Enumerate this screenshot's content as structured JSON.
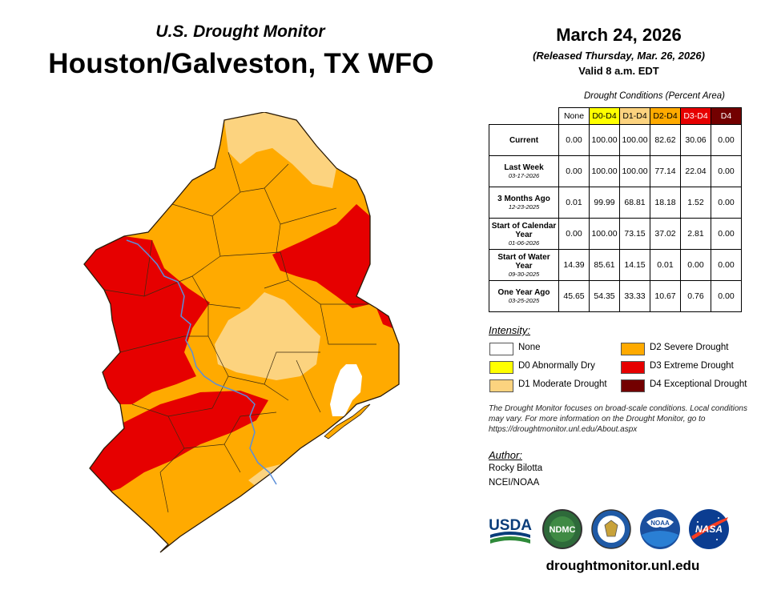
{
  "header": {
    "series": "U.S. Drought Monitor",
    "region": "Houston/Galveston, TX WFO",
    "date": "March 24, 2026",
    "released": "(Released Thursday, Mar. 26, 2026)",
    "valid": "Valid 8 a.m. EDT"
  },
  "table": {
    "caption": "Drought Conditions (Percent Area)",
    "columns": [
      "None",
      "D0-D4",
      "D1-D4",
      "D2-D4",
      "D3-D4",
      "D4"
    ],
    "column_colors": [
      "#ffffff",
      "#ffff00",
      "#fcd37f",
      "#ffaa00",
      "#e60000",
      "#730000"
    ],
    "rows": [
      {
        "label": "Current",
        "sublabel": "",
        "values": [
          "0.00",
          "100.00",
          "100.00",
          "82.62",
          "30.06",
          "0.00"
        ]
      },
      {
        "label": "Last Week",
        "sublabel": "03-17-2026",
        "values": [
          "0.00",
          "100.00",
          "100.00",
          "77.14",
          "22.04",
          "0.00"
        ]
      },
      {
        "label": "3 Months Ago",
        "sublabel": "12-23-2025",
        "values": [
          "0.01",
          "99.99",
          "68.81",
          "18.18",
          "1.52",
          "0.00"
        ]
      },
      {
        "label": "Start of Calendar Year",
        "sublabel": "01-06-2026",
        "values": [
          "0.00",
          "100.00",
          "73.15",
          "37.02",
          "2.81",
          "0.00"
        ]
      },
      {
        "label": "Start of Water Year",
        "sublabel": "09-30-2025",
        "values": [
          "14.39",
          "85.61",
          "14.15",
          "0.01",
          "0.00",
          "0.00"
        ]
      },
      {
        "label": "One Year Ago",
        "sublabel": "03-25-2025",
        "values": [
          "45.65",
          "54.35",
          "33.33",
          "10.67",
          "0.76",
          "0.00"
        ]
      }
    ]
  },
  "legend": {
    "title": "Intensity:",
    "items": [
      {
        "label": "None",
        "color": "#ffffff"
      },
      {
        "label": "D0 Abnormally Dry",
        "color": "#ffff00"
      },
      {
        "label": "D1 Moderate Drought",
        "color": "#fcd37f"
      },
      {
        "label": "D2 Severe Drought",
        "color": "#ffaa00"
      },
      {
        "label": "D3 Extreme Drought",
        "color": "#e60000"
      },
      {
        "label": "D4 Exceptional Drought",
        "color": "#730000"
      }
    ]
  },
  "note": "The Drought Monitor focuses on broad-scale conditions. Local conditions may vary. For more information on the Drought Monitor, go to https://droughtmonitor.unl.edu/About.aspx",
  "author": {
    "title": "Author:",
    "name": "Rocky Bilotta",
    "org": "NCEI/NOAA"
  },
  "logos": {
    "usda": "USDA",
    "ndmc": "NDMC",
    "noaa": "NOAA",
    "nasa": "NASA"
  },
  "website": "droughtmonitor.unl.edu",
  "colors": {
    "d1": "#fcd37f",
    "d2": "#ffaa00",
    "d3": "#e60000",
    "river": "#5b8fd9",
    "gulf": "#ffffff"
  }
}
